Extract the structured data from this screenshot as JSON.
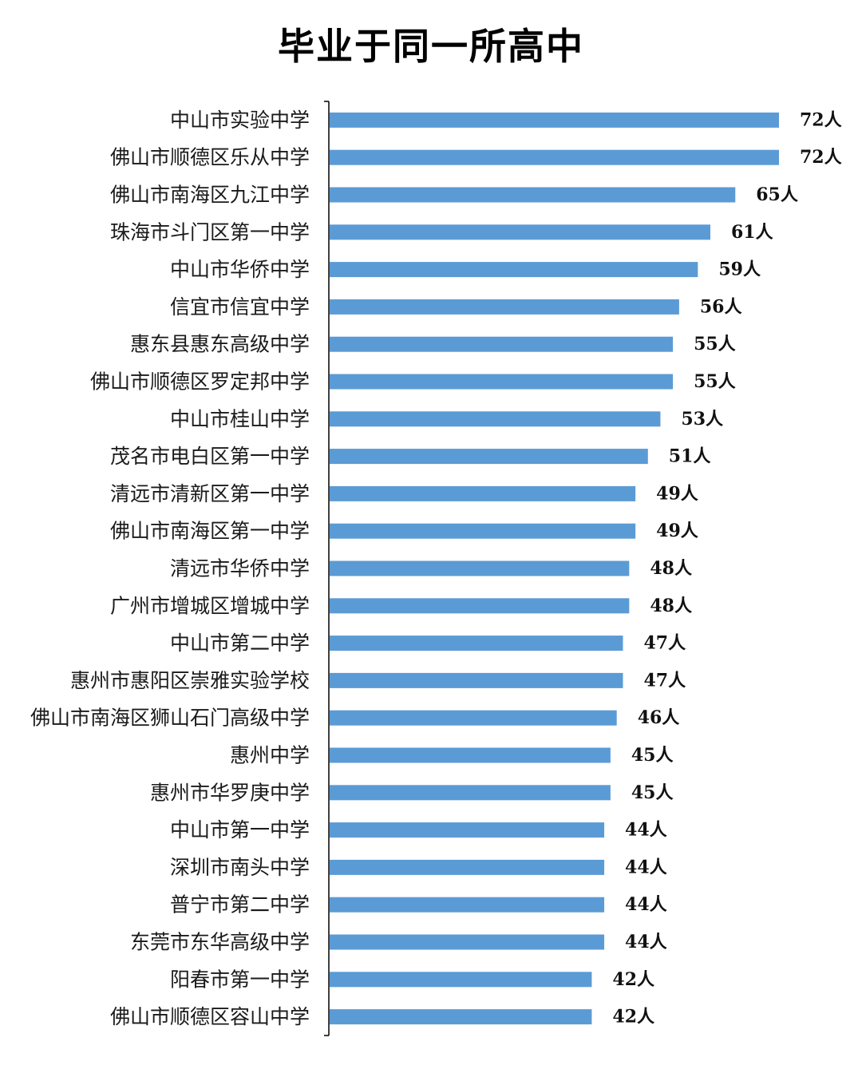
{
  "chart_data": {
    "type": "bar",
    "orientation": "horizontal",
    "title": "毕业于同一所高中",
    "value_suffix": "人",
    "bar_color": "#5b9bd5",
    "grid": false,
    "categories": [
      "中山市实验中学",
      "佛山市顺德区乐从中学",
      "佛山市南海区九江中学",
      "珠海市斗门区第一中学",
      "中山市华侨中学",
      "信宜市信宜中学",
      "惠东县惠东高级中学",
      "佛山市顺德区罗定邦中学",
      "中山市桂山中学",
      "茂名市电白区第一中学",
      "清远市清新区第一中学",
      "佛山市南海区第一中学",
      "清远市华侨中学",
      "广州市增城区增城中学",
      "中山市第二中学",
      "惠州市惠阳区崇雅实验学校",
      "佛山市南海区狮山石门高级中学",
      "惠州中学",
      "惠州市华罗庚中学",
      "中山市第一中学",
      "深圳市南头中学",
      "普宁市第二中学",
      "东莞市东华高级中学",
      "阳春市第一中学",
      "佛山市顺德区容山中学"
    ],
    "values": [
      72,
      72,
      65,
      61,
      59,
      56,
      55,
      55,
      53,
      51,
      49,
      49,
      48,
      48,
      47,
      47,
      46,
      45,
      45,
      44,
      44,
      44,
      44,
      42,
      42
    ],
    "xlim": [
      0,
      72
    ]
  }
}
